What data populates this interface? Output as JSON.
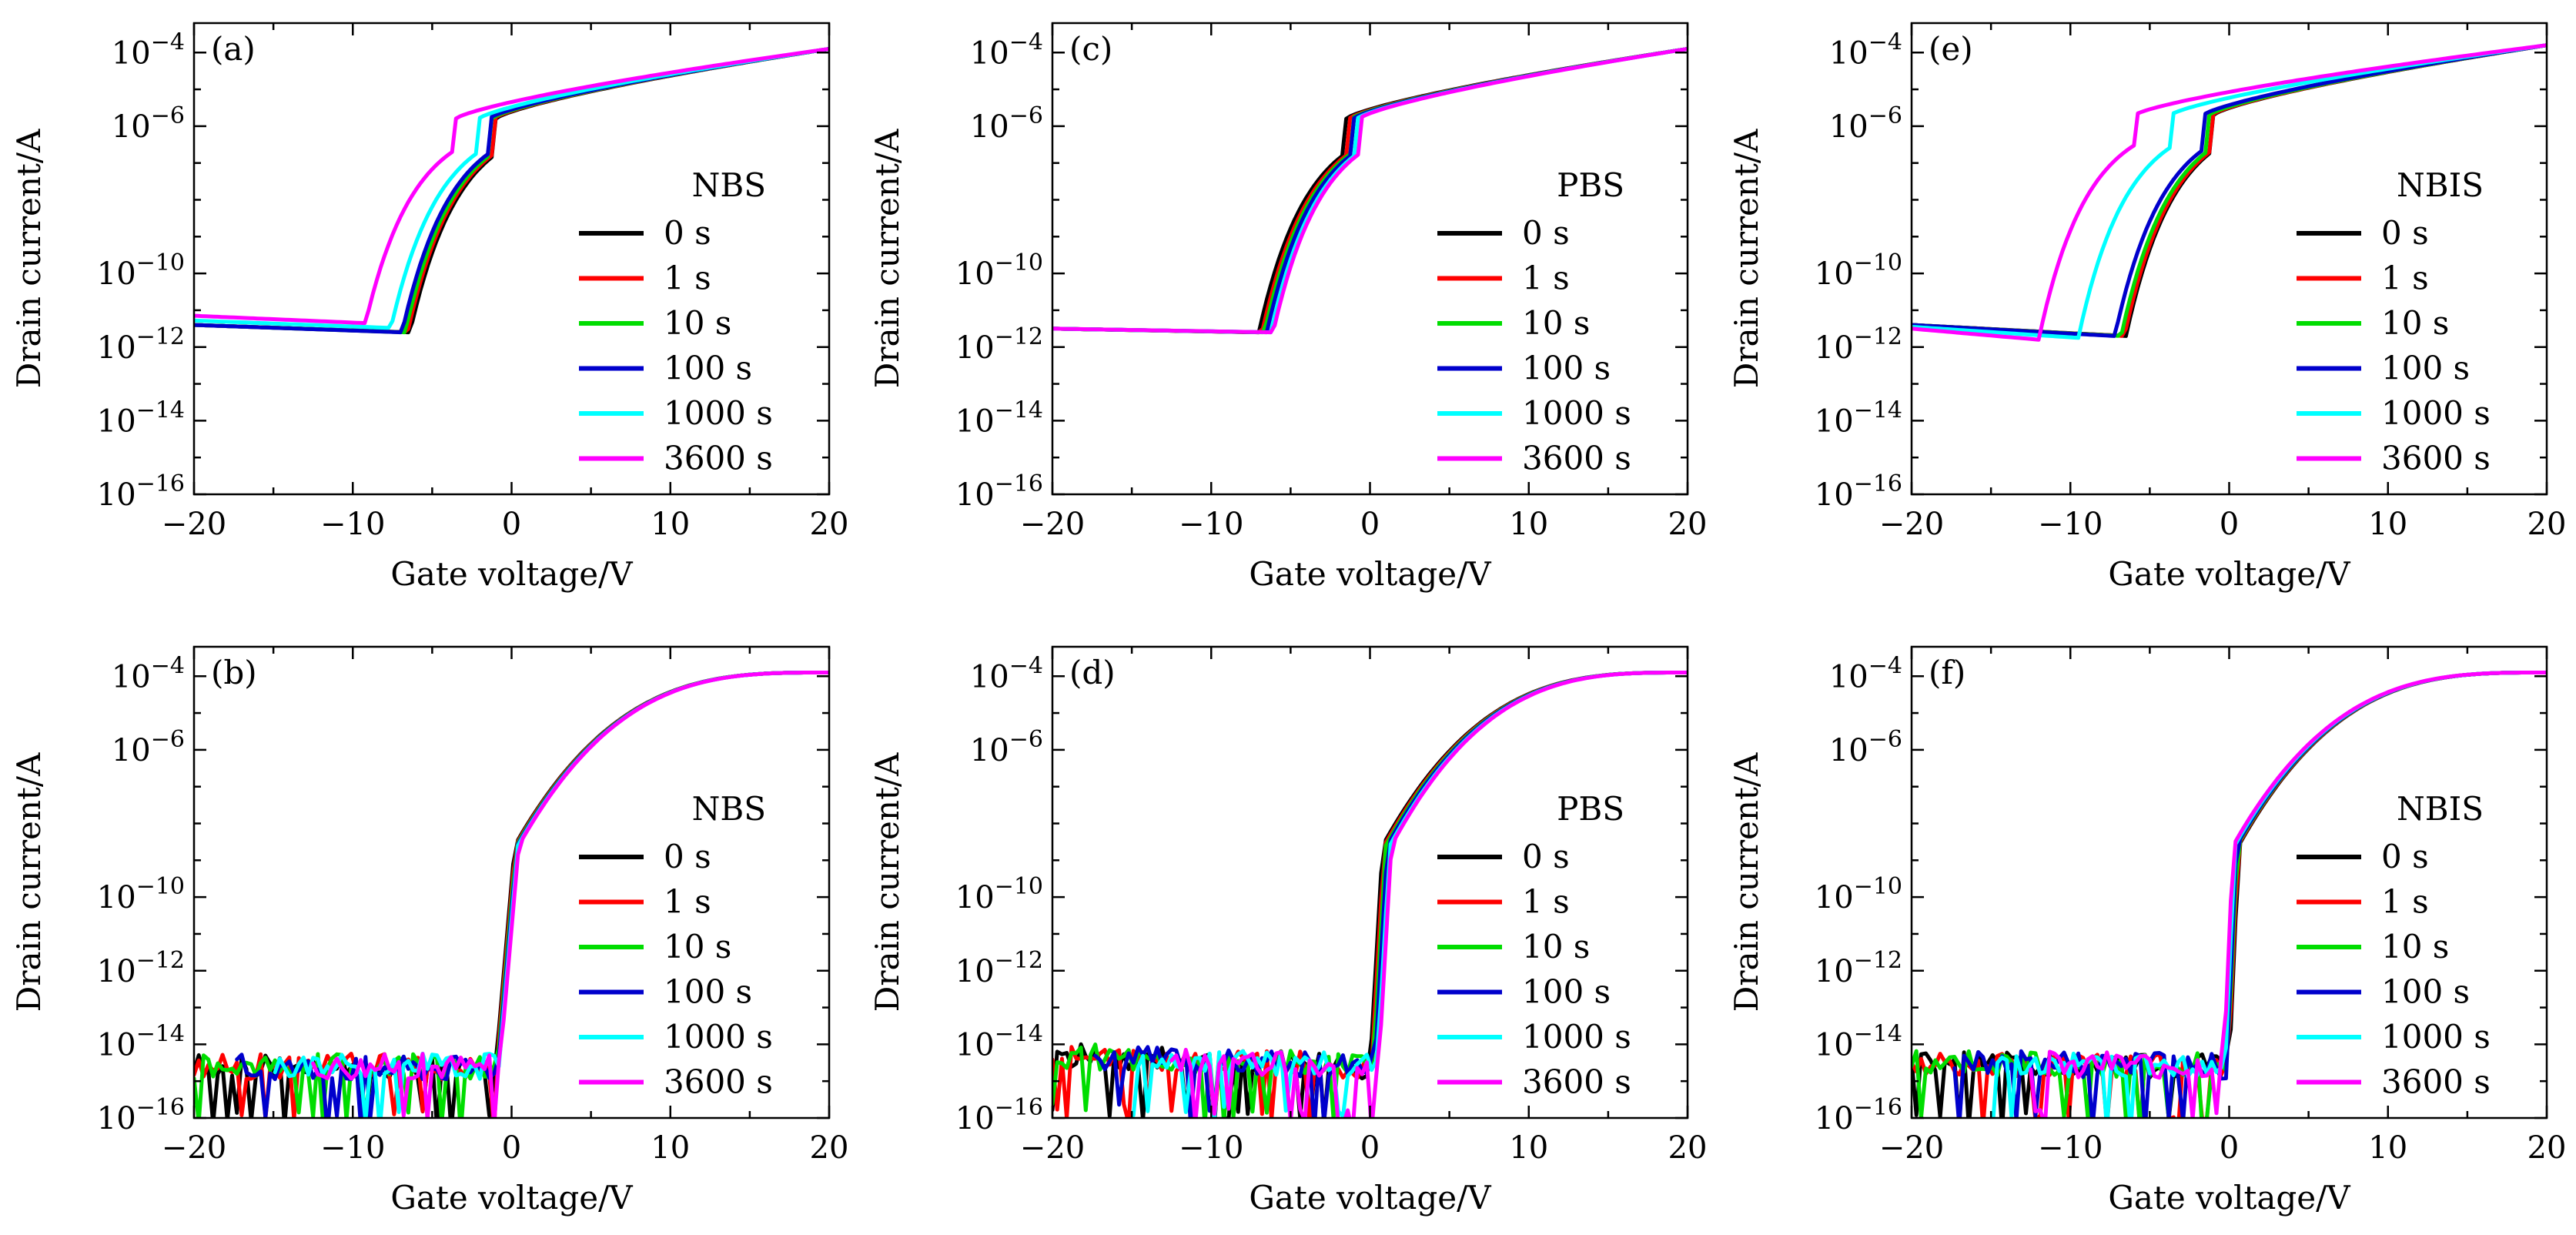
{
  "chart_data": [
    {
      "panel": "(a)",
      "type": "line",
      "legend_title": "NBS",
      "xlabel": "Gate voltage/V",
      "ylabel": "Drain current/A",
      "xlim": [
        -20,
        20
      ],
      "ylim_log10": [
        -16,
        -3.2
      ],
      "xticks": [
        -20,
        -10,
        0,
        10,
        20
      ],
      "yticks_log10": [
        -4,
        -6,
        -10,
        -12,
        -14,
        -16
      ],
      "scale": "log",
      "legend_placement": "right",
      "style": "transfer",
      "leak_log10": [
        -11.4,
        -11.6
      ],
      "vth": [
        -6.4,
        -4.0
      ],
      "on_log10": -3.9,
      "offsets": [
        0,
        0.15,
        0.3,
        0.5,
        1.2,
        2.8
      ],
      "leak_offset": [
        0,
        0,
        0,
        0,
        0.12,
        0.25
      ],
      "series": [
        {
          "name": "0 s",
          "color": "#000000"
        },
        {
          "name": "1 s",
          "color": "#ff0000"
        },
        {
          "name": "10 s",
          "color": "#00dd00"
        },
        {
          "name": "100 s",
          "color": "#0000cc"
        },
        {
          "name": "1000 s",
          "color": "#00ffff"
        },
        {
          "name": "3600 s",
          "color": "#ff00ff"
        }
      ]
    },
    {
      "panel": "(b)",
      "type": "line",
      "legend_title": "NBS",
      "xlabel": "Gate voltage/V",
      "ylabel": "Drain current/A",
      "xlim": [
        -20,
        20
      ],
      "ylim_log10": [
        -16,
        -3.2
      ],
      "xticks": [
        -20,
        -10,
        0,
        10,
        20
      ],
      "yticks_log10": [
        -4,
        -6,
        -10,
        -12,
        -14,
        -16
      ],
      "scale": "log",
      "legend_placement": "right",
      "style": "noisy",
      "leak_log10": [
        -14.6,
        -14.6
      ],
      "vth": [
        -1.0,
        0.2
      ],
      "on_log10": -3.9,
      "offsets": [
        0,
        0.05,
        0.1,
        0.15,
        0.2,
        0.25
      ],
      "series": [
        {
          "name": "0 s",
          "color": "#000000"
        },
        {
          "name": "1 s",
          "color": "#ff0000"
        },
        {
          "name": "10 s",
          "color": "#00dd00"
        },
        {
          "name": "100 s",
          "color": "#0000cc"
        },
        {
          "name": "1000 s",
          "color": "#00ffff"
        },
        {
          "name": "3600 s",
          "color": "#ff00ff"
        }
      ]
    },
    {
      "panel": "(c)",
      "type": "line",
      "legend_title": "PBS",
      "xlabel": "Gate voltage/V",
      "ylabel": "Drain current/A",
      "xlim": [
        -20,
        20
      ],
      "ylim_log10": [
        -16,
        -3.2
      ],
      "xticks": [
        -20,
        -10,
        0,
        10,
        20
      ],
      "yticks_log10": [
        -4,
        -6,
        -10,
        -12,
        -14,
        -16
      ],
      "scale": "log",
      "legend_placement": "right",
      "style": "transfer",
      "leak_log10": [
        -11.5,
        -11.6
      ],
      "vth": [
        -7.0,
        -4.5
      ],
      "on_log10": -3.9,
      "offsets": [
        0,
        -0.2,
        -0.35,
        -0.5,
        -0.75,
        -0.9
      ],
      "leak_offset": [
        0,
        0,
        0,
        0,
        0,
        0
      ],
      "series": [
        {
          "name": "0 s",
          "color": "#000000"
        },
        {
          "name": "1 s",
          "color": "#ff0000"
        },
        {
          "name": "10 s",
          "color": "#00dd00"
        },
        {
          "name": "100 s",
          "color": "#0000cc"
        },
        {
          "name": "1000 s",
          "color": "#00ffff"
        },
        {
          "name": "3600 s",
          "color": "#ff00ff"
        }
      ]
    },
    {
      "panel": "(d)",
      "type": "line",
      "legend_title": "PBS",
      "xlabel": "Gate voltage/V",
      "ylabel": "Drain current/A",
      "xlim": [
        -20,
        20
      ],
      "ylim_log10": [
        -16,
        -3.2
      ],
      "xticks": [
        -20,
        -10,
        0,
        10,
        20
      ],
      "yticks_log10": [
        -4,
        -6,
        -10,
        -12,
        -14,
        -16
      ],
      "scale": "log",
      "legend_placement": "right",
      "style": "noisy",
      "leak_log10": [
        -14.3,
        -14.6
      ],
      "vth": [
        0.0,
        0.8
      ],
      "on_log10": -3.9,
      "offsets": [
        0,
        0.1,
        0.2,
        0.3,
        0.45,
        0.55
      ],
      "series": [
        {
          "name": "0 s",
          "color": "#000000"
        },
        {
          "name": "1 s",
          "color": "#ff0000"
        },
        {
          "name": "10 s",
          "color": "#00dd00"
        },
        {
          "name": "100 s",
          "color": "#0000cc"
        },
        {
          "name": "1000 s",
          "color": "#00ffff"
        },
        {
          "name": "3600 s",
          "color": "#ff00ff"
        }
      ]
    },
    {
      "panel": "(e)",
      "type": "line",
      "legend_title": "NBIS",
      "xlabel": "Gate voltage/V",
      "ylabel": "Drain current/A",
      "xlim": [
        -20,
        20
      ],
      "ylim_log10": [
        -16,
        -3.2
      ],
      "xticks": [
        -20,
        -10,
        0,
        10,
        20
      ],
      "yticks_log10": [
        -4,
        -6,
        -10,
        -12,
        -14,
        -16
      ],
      "scale": "log",
      "legend_placement": "right",
      "style": "transfer",
      "leak_log10": [
        -11.4,
        -11.7
      ],
      "vth": [
        -6.5,
        -4.0
      ],
      "on_log10": -3.8,
      "offsets": [
        0,
        0.1,
        0.3,
        0.7,
        3.0,
        5.5
      ],
      "leak_offset": [
        0,
        0,
        0,
        0,
        -0.05,
        -0.1
      ],
      "series": [
        {
          "name": "0 s",
          "color": "#000000"
        },
        {
          "name": "1 s",
          "color": "#ff0000"
        },
        {
          "name": "10 s",
          "color": "#00dd00"
        },
        {
          "name": "100 s",
          "color": "#0000cc"
        },
        {
          "name": "1000 s",
          "color": "#00ffff"
        },
        {
          "name": "3600 s",
          "color": "#ff00ff"
        }
      ]
    },
    {
      "panel": "(f)",
      "type": "line",
      "legend_title": "NBIS",
      "xlabel": "Gate voltage/V",
      "ylabel": "Drain current/A",
      "xlim": [
        -20,
        20
      ],
      "ylim_log10": [
        -16,
        -3.2
      ],
      "xticks": [
        -20,
        -10,
        0,
        10,
        20
      ],
      "yticks_log10": [
        -4,
        -6,
        -10,
        -12,
        -14,
        -16
      ],
      "scale": "log",
      "legend_placement": "right",
      "style": "noisy",
      "leak_log10": [
        -14.5,
        -14.6
      ],
      "vth": [
        0.0,
        0.6
      ],
      "on_log10": -3.9,
      "offsets": [
        0,
        -0.05,
        -0.1,
        -0.15,
        -0.25,
        -0.35
      ],
      "series": [
        {
          "name": "0 s",
          "color": "#000000"
        },
        {
          "name": "1 s",
          "color": "#ff0000"
        },
        {
          "name": "10 s",
          "color": "#00dd00"
        },
        {
          "name": "100 s",
          "color": "#0000cc"
        },
        {
          "name": "1000 s",
          "color": "#00ffff"
        },
        {
          "name": "3600 s",
          "color": "#ff00ff"
        }
      ]
    }
  ]
}
